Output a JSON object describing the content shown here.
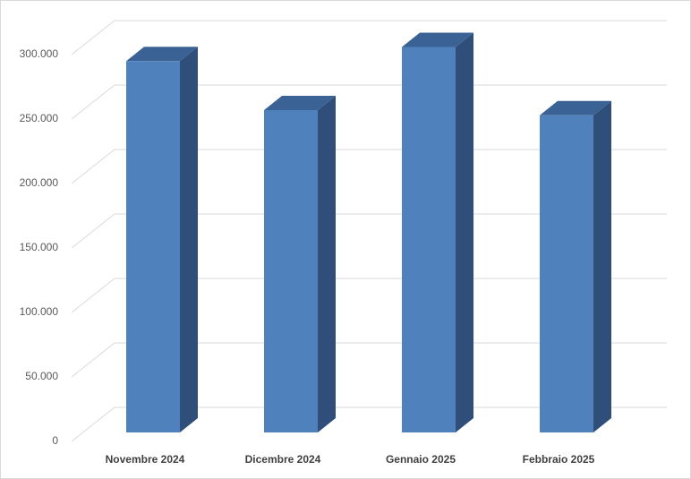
{
  "chart_data": {
    "type": "bar3d",
    "categories": [
      "Novembre 2024",
      "Dicembre 2024",
      "Gennaio 2025",
      "Febbraio 2025"
    ],
    "values": [
      288000,
      250000,
      299000,
      246000
    ],
    "color": "#4f81bd",
    "ylim": [
      0,
      300000
    ],
    "yticks": [
      0,
      {
        "value": 50000,
        "label": "50.000"
      },
      {
        "value": 100000,
        "label": "100.000"
      },
      {
        "value": 150000,
        "label": "150.000"
      },
      {
        "value": 200000,
        "label": "200.000"
      },
      {
        "value": 250000,
        "label": "250.000"
      },
      {
        "value": 300000,
        "label": "300.000"
      }
    ],
    "grid": true
  }
}
